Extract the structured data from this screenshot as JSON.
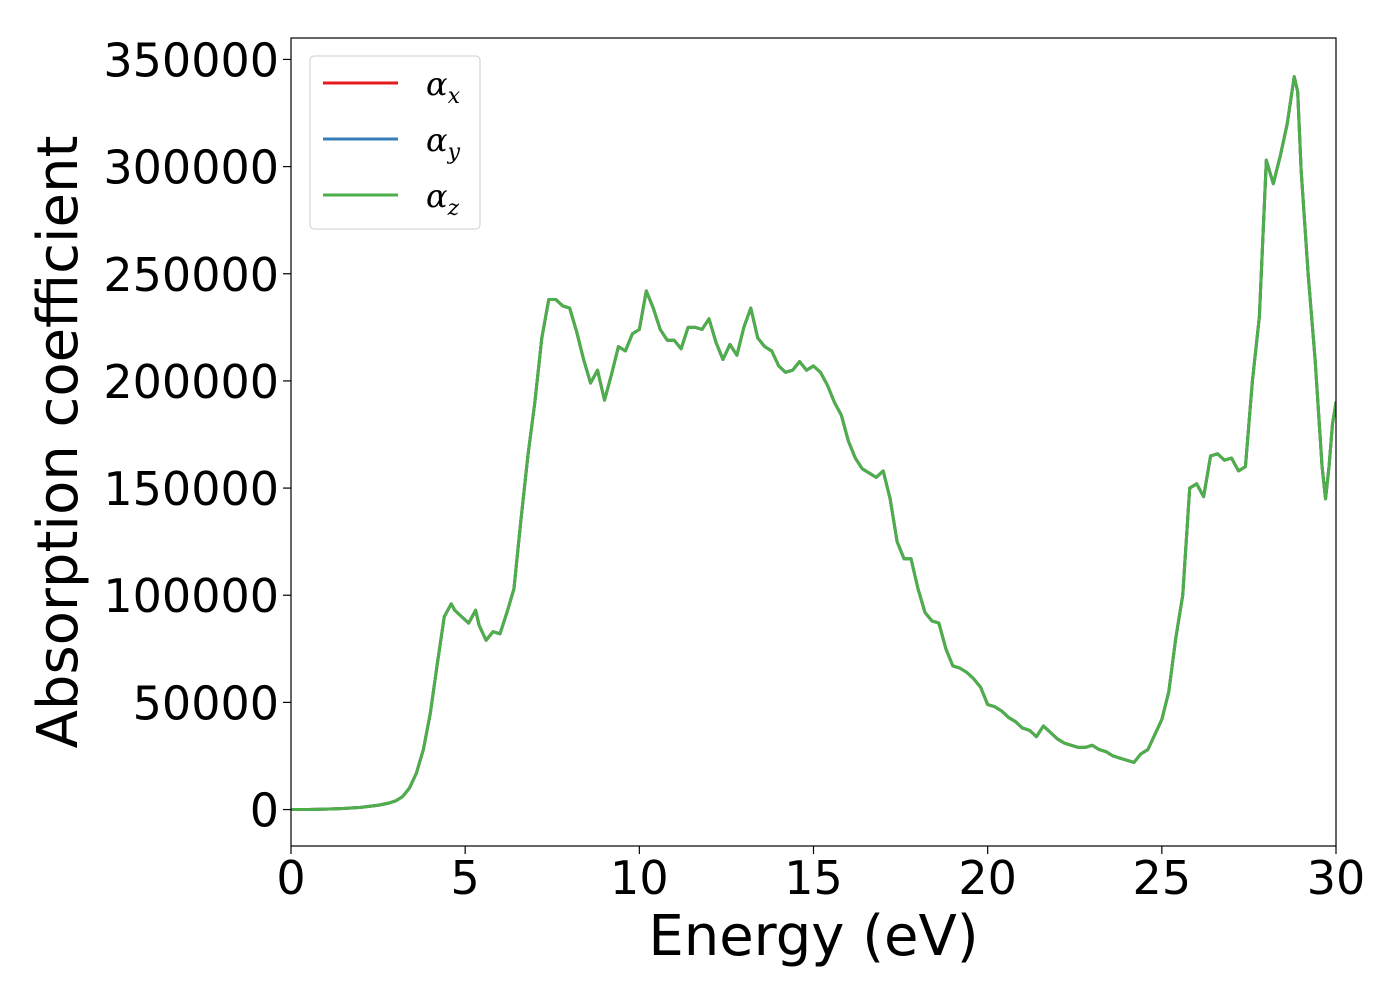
{
  "chart_data": {
    "type": "line",
    "title": "",
    "xlabel": "Energy (eV)",
    "ylabel": "Absorption coefficient",
    "xlim": [
      0,
      30
    ],
    "ylim": [
      -17000,
      360000
    ],
    "xticks": [
      0,
      5,
      10,
      15,
      20,
      25,
      30
    ],
    "xtick_labels": [
      "0",
      "5",
      "10",
      "15",
      "20",
      "25",
      "30"
    ],
    "yticks": [
      0,
      50000,
      100000,
      150000,
      200000,
      250000,
      300000,
      350000
    ],
    "ytick_labels": [
      "0",
      "50000",
      "100000",
      "150000",
      "200000",
      "250000",
      "300000",
      "350000"
    ],
    "grid": false,
    "legend_position": "top-left",
    "x": [
      0,
      0.5,
      1.0,
      1.5,
      2.0,
      2.5,
      2.8,
      3.0,
      3.2,
      3.4,
      3.6,
      3.8,
      4.0,
      4.2,
      4.4,
      4.6,
      4.7,
      4.9,
      5.1,
      5.3,
      5.4,
      5.6,
      5.8,
      6.0,
      6.2,
      6.4,
      6.6,
      6.8,
      7.0,
      7.2,
      7.4,
      7.6,
      7.8,
      8.0,
      8.2,
      8.4,
      8.6,
      8.8,
      9.0,
      9.2,
      9.4,
      9.6,
      9.8,
      10.0,
      10.2,
      10.4,
      10.6,
      10.8,
      11.0,
      11.2,
      11.4,
      11.6,
      11.8,
      12.0,
      12.2,
      12.4,
      12.6,
      12.8,
      13.0,
      13.2,
      13.4,
      13.6,
      13.8,
      14.0,
      14.2,
      14.4,
      14.6,
      14.8,
      15.0,
      15.2,
      15.4,
      15.6,
      15.8,
      16.0,
      16.2,
      16.4,
      16.6,
      16.8,
      17.0,
      17.2,
      17.4,
      17.6,
      17.8,
      18.0,
      18.2,
      18.4,
      18.6,
      18.8,
      19.0,
      19.2,
      19.4,
      19.6,
      19.8,
      20.0,
      20.2,
      20.4,
      20.6,
      20.8,
      21.0,
      21.2,
      21.4,
      21.6,
      21.8,
      22.0,
      22.2,
      22.4,
      22.6,
      22.8,
      23.0,
      23.2,
      23.4,
      23.6,
      23.8,
      24.0,
      24.2,
      24.4,
      24.6,
      24.8,
      25.0,
      25.2,
      25.4,
      25.6,
      25.8,
      26.0,
      26.2,
      26.4,
      26.6,
      26.8,
      27.0,
      27.2,
      27.4,
      27.6,
      27.8,
      28.0,
      28.2,
      28.4,
      28.6,
      28.8,
      28.9,
      29.0,
      29.2,
      29.4,
      29.6,
      29.7,
      29.8,
      29.9,
      30.0
    ],
    "series": [
      {
        "name": "α_x",
        "name_base": "α",
        "name_sub": "x",
        "color": "#e41a1c",
        "values": [
          0,
          0,
          200,
          500,
          1000,
          2000,
          3000,
          4000,
          6000,
          10000,
          17000,
          28000,
          45000,
          68000,
          90000,
          96000,
          93000,
          90000,
          87000,
          93000,
          86000,
          79000,
          83000,
          82000,
          92000,
          103000,
          135000,
          165000,
          190000,
          220000,
          238000,
          238000,
          235000,
          234000,
          223000,
          210000,
          199000,
          205000,
          191000,
          203000,
          216000,
          214000,
          222000,
          224000,
          242000,
          234000,
          224000,
          219000,
          219000,
          215000,
          225000,
          225000,
          224000,
          229000,
          218000,
          210000,
          217000,
          212000,
          225000,
          234000,
          220000,
          216000,
          214000,
          207000,
          204000,
          205000,
          209000,
          205000,
          207000,
          204000,
          198000,
          190000,
          184000,
          172000,
          164000,
          159000,
          157000,
          155000,
          158000,
          145000,
          125000,
          117000,
          117000,
          103000,
          92000,
          88000,
          87000,
          75000,
          67000,
          66000,
          64000,
          61000,
          57000,
          49000,
          48000,
          46000,
          43000,
          41000,
          38000,
          37000,
          34000,
          39000,
          36000,
          33000,
          31000,
          30000,
          29000,
          29000,
          30000,
          28000,
          27000,
          25000,
          24000,
          23000,
          22000,
          26000,
          28000,
          35000,
          42000,
          55000,
          80000,
          100000,
          150000,
          152000,
          146000,
          165000,
          166000,
          163000,
          164000,
          158000,
          160000,
          200000,
          230000,
          303000,
          292000,
          305000,
          320000,
          342000,
          335000,
          298000,
          250000,
          210000,
          160000,
          145000,
          160000,
          180000,
          190000
        ]
      },
      {
        "name": "α_y",
        "name_base": "α",
        "name_sub": "y",
        "color": "#377eb8",
        "values": [
          0,
          0,
          200,
          500,
          1000,
          2000,
          3000,
          4000,
          6000,
          10000,
          17000,
          28000,
          45000,
          68000,
          90000,
          96000,
          93000,
          90000,
          87000,
          93000,
          86000,
          79000,
          83000,
          82000,
          92000,
          103000,
          135000,
          165000,
          190000,
          220000,
          238000,
          238000,
          235000,
          234000,
          223000,
          210000,
          199000,
          205000,
          191000,
          203000,
          216000,
          214000,
          222000,
          224000,
          242000,
          234000,
          224000,
          219000,
          219000,
          215000,
          225000,
          225000,
          224000,
          229000,
          218000,
          210000,
          217000,
          212000,
          225000,
          234000,
          220000,
          216000,
          214000,
          207000,
          204000,
          205000,
          209000,
          205000,
          207000,
          204000,
          198000,
          190000,
          184000,
          172000,
          164000,
          159000,
          157000,
          155000,
          158000,
          145000,
          125000,
          117000,
          117000,
          103000,
          92000,
          88000,
          87000,
          75000,
          67000,
          66000,
          64000,
          61000,
          57000,
          49000,
          48000,
          46000,
          43000,
          41000,
          38000,
          37000,
          34000,
          39000,
          36000,
          33000,
          31000,
          30000,
          29000,
          29000,
          30000,
          28000,
          27000,
          25000,
          24000,
          23000,
          22000,
          26000,
          28000,
          35000,
          42000,
          55000,
          80000,
          100000,
          150000,
          152000,
          146000,
          165000,
          166000,
          163000,
          164000,
          158000,
          160000,
          200000,
          230000,
          303000,
          292000,
          305000,
          320000,
          342000,
          335000,
          298000,
          250000,
          210000,
          160000,
          145000,
          160000,
          180000,
          190000
        ]
      },
      {
        "name": "α_z",
        "name_base": "α",
        "name_sub": "z",
        "color": "#4daf4a",
        "values": [
          0,
          0,
          200,
          500,
          1000,
          2000,
          3000,
          4000,
          6000,
          10000,
          17000,
          28000,
          45000,
          68000,
          90000,
          96000,
          93000,
          90000,
          87000,
          93000,
          86000,
          79000,
          83000,
          82000,
          92000,
          103000,
          135000,
          165000,
          190000,
          220000,
          238000,
          238000,
          235000,
          234000,
          223000,
          210000,
          199000,
          205000,
          191000,
          203000,
          216000,
          214000,
          222000,
          224000,
          242000,
          234000,
          224000,
          219000,
          219000,
          215000,
          225000,
          225000,
          224000,
          229000,
          218000,
          210000,
          217000,
          212000,
          225000,
          234000,
          220000,
          216000,
          214000,
          207000,
          204000,
          205000,
          209000,
          205000,
          207000,
          204000,
          198000,
          190000,
          184000,
          172000,
          164000,
          159000,
          157000,
          155000,
          158000,
          145000,
          125000,
          117000,
          117000,
          103000,
          92000,
          88000,
          87000,
          75000,
          67000,
          66000,
          64000,
          61000,
          57000,
          49000,
          48000,
          46000,
          43000,
          41000,
          38000,
          37000,
          34000,
          39000,
          36000,
          33000,
          31000,
          30000,
          29000,
          29000,
          30000,
          28000,
          27000,
          25000,
          24000,
          23000,
          22000,
          26000,
          28000,
          35000,
          42000,
          55000,
          80000,
          100000,
          150000,
          152000,
          146000,
          165000,
          166000,
          163000,
          164000,
          158000,
          160000,
          200000,
          230000,
          303000,
          292000,
          305000,
          320000,
          342000,
          335000,
          298000,
          250000,
          210000,
          160000,
          145000,
          160000,
          180000,
          190000
        ]
      }
    ]
  }
}
